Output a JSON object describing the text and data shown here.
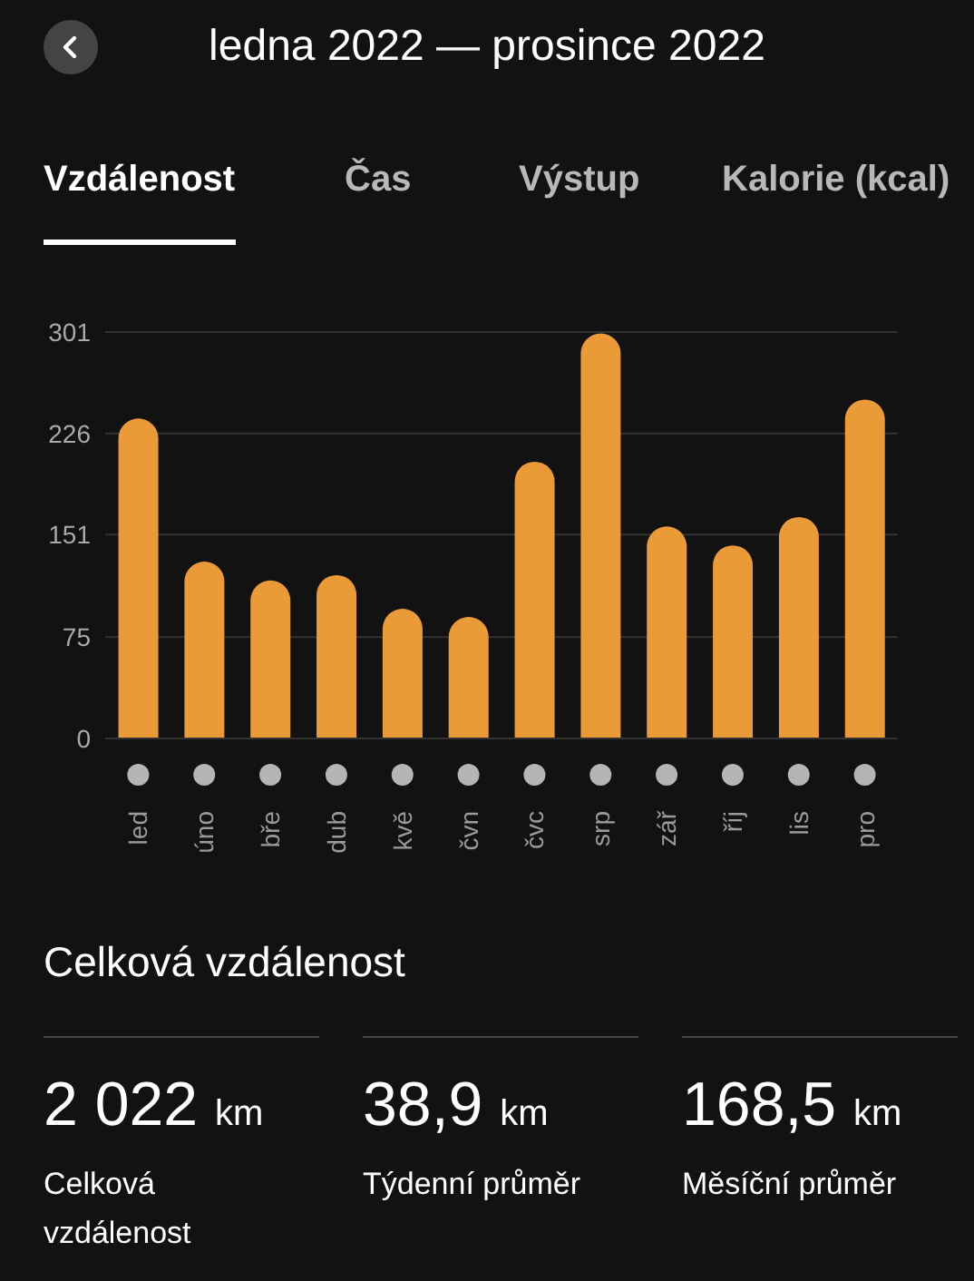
{
  "chart_data": {
    "type": "bar",
    "title": "ledna 2022 — prosince 2022",
    "categories": [
      "led",
      "úno",
      "bře",
      "dub",
      "kvě",
      "čvn",
      "čvc",
      "srp",
      "zář",
      "říj",
      "lis",
      "pro"
    ],
    "values": [
      237,
      131,
      117,
      121,
      96,
      90,
      205,
      300,
      157,
      143,
      164,
      251
    ],
    "color": "#eb9a38",
    "ylim": [
      0,
      301
    ],
    "yticks": [
      0,
      75,
      151,
      226,
      301
    ],
    "grid": "y",
    "annotations": [
      "Vzdálenost",
      "Čas",
      "Výstup",
      "Kalorie (kcal)",
      "Celková vzdálenost",
      "2 022 km",
      "Celková vzdálenost",
      "38,9 km",
      "Týdenní průměr",
      "168,5 km",
      "Měsíční průměr"
    ]
  }
}
